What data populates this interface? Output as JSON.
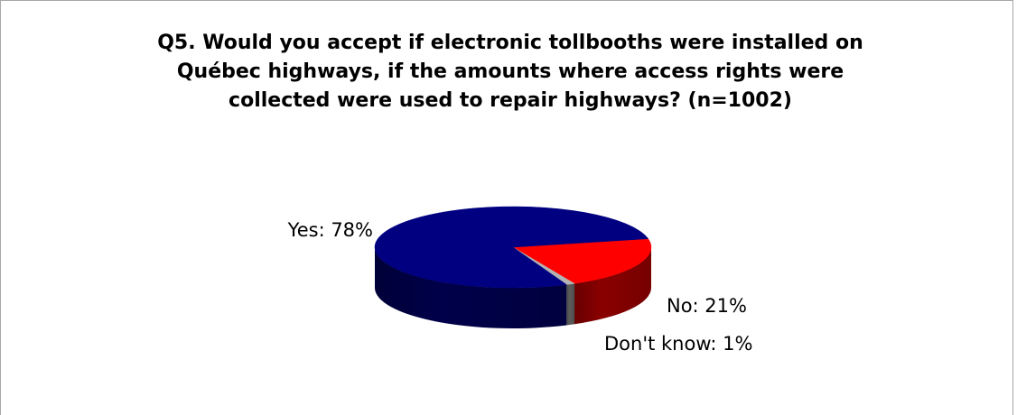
{
  "chart_data": {
    "type": "pie",
    "title_lines": [
      "Q5. Would you accept if electronic tollbooths were installed on",
      "Québec highways, if the amounts where access rights were",
      "collected were used to repair highways? (n=1002)"
    ],
    "slices": [
      {
        "label": "Yes: 78%",
        "value": 78,
        "color": "#000080",
        "side": "#00004a"
      },
      {
        "label": "No: 21%",
        "value": 21,
        "color": "#ff0000",
        "side": "#8a0000"
      },
      {
        "label": "Don't know: 1%",
        "value": 1,
        "color": "#b3b3b3",
        "side": "#5c5c5c"
      }
    ],
    "legend": "none",
    "three_d": true
  }
}
